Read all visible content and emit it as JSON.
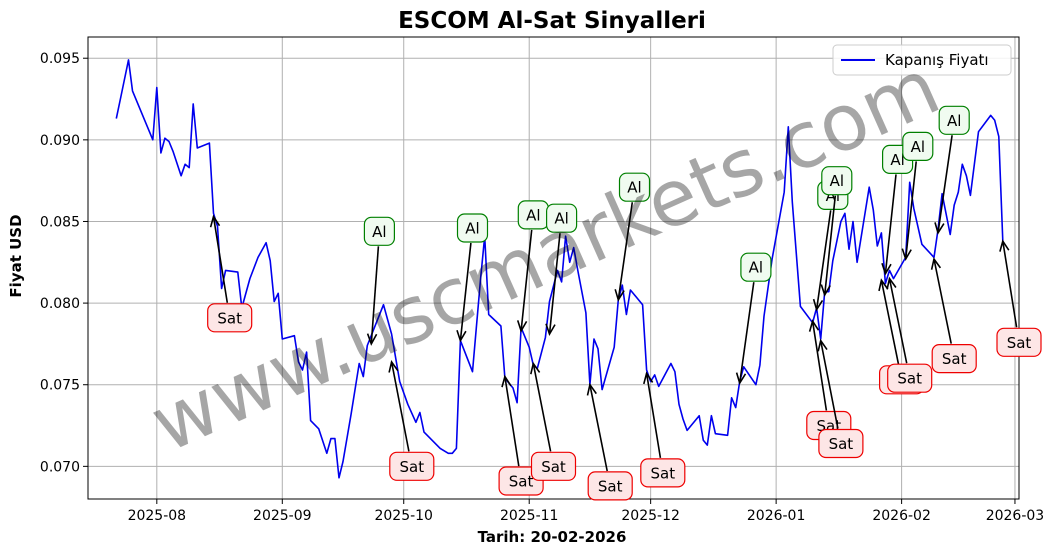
{
  "chart_data": {
    "type": "line",
    "title": "ESCOM Al-Sat Sinyalleri",
    "xlabel": "Tarih: 20-02-2026",
    "ylabel": "Fiyat USD",
    "watermark": "www.uscmarkets.com",
    "legend": {
      "position": "top-right",
      "entries": [
        "Kapanış Fiyatı"
      ]
    },
    "grid": true,
    "xlim": [
      "2025-07-15",
      "2026-03-02"
    ],
    "ylim": [
      0.068,
      0.0963
    ],
    "xticks": [
      {
        "date": "2025-08-01",
        "label": "2025-08"
      },
      {
        "date": "2025-09-01",
        "label": "2025-09"
      },
      {
        "date": "2025-10-01",
        "label": "2025-10"
      },
      {
        "date": "2025-11-01",
        "label": "2025-11"
      },
      {
        "date": "2025-12-01",
        "label": "2025-12"
      },
      {
        "date": "2026-01-01",
        "label": "2026-01"
      },
      {
        "date": "2026-02-01",
        "label": "2026-02"
      },
      {
        "date": "2026-03-01",
        "label": "2026-03"
      }
    ],
    "yticks": [
      0.07,
      0.075,
      0.08,
      0.085,
      0.09,
      0.095
    ],
    "ytick_labels": [
      "0.070",
      "0.075",
      "0.080",
      "0.085",
      "0.090",
      "0.095"
    ],
    "colors": {
      "line": "#0000ee",
      "buy_edge": "#008000",
      "buy_face": "#f0fbf0",
      "sell_edge": "#ee0000",
      "sell_face": "#fde6e6"
    },
    "series": [
      {
        "name": "Kapanış Fiyatı",
        "points": [
          [
            "2025-07-22",
            0.0913
          ],
          [
            "2025-07-23",
            0.0925
          ],
          [
            "2025-07-25",
            0.0949
          ],
          [
            "2025-07-26",
            0.093
          ],
          [
            "2025-07-29",
            0.0912
          ],
          [
            "2025-07-31",
            0.09
          ],
          [
            "2025-08-01",
            0.0932
          ],
          [
            "2025-08-02",
            0.0892
          ],
          [
            "2025-08-03",
            0.0901
          ],
          [
            "2025-08-04",
            0.0899
          ],
          [
            "2025-08-05",
            0.0893
          ],
          [
            "2025-08-07",
            0.0878
          ],
          [
            "2025-08-08",
            0.0885
          ],
          [
            "2025-08-09",
            0.0883
          ],
          [
            "2025-08-10",
            0.0922
          ],
          [
            "2025-08-11",
            0.0895
          ],
          [
            "2025-08-14",
            0.0898
          ],
          [
            "2025-08-15",
            0.0855
          ],
          [
            "2025-08-16",
            0.0847
          ],
          [
            "2025-08-17",
            0.0809
          ],
          [
            "2025-08-18",
            0.082
          ],
          [
            "2025-08-21",
            0.0819
          ],
          [
            "2025-08-22",
            0.0797
          ],
          [
            "2025-08-24",
            0.0815
          ],
          [
            "2025-08-26",
            0.0828
          ],
          [
            "2025-08-28",
            0.0837
          ],
          [
            "2025-08-29",
            0.0826
          ],
          [
            "2025-08-30",
            0.0801
          ],
          [
            "2025-08-31",
            0.0806
          ],
          [
            "2025-09-01",
            0.0778
          ],
          [
            "2025-09-04",
            0.078
          ],
          [
            "2025-09-05",
            0.0764
          ],
          [
            "2025-09-06",
            0.0759
          ],
          [
            "2025-09-07",
            0.077
          ],
          [
            "2025-09-08",
            0.0728
          ],
          [
            "2025-09-10",
            0.0723
          ],
          [
            "2025-09-12",
            0.0708
          ],
          [
            "2025-09-13",
            0.0717
          ],
          [
            "2025-09-14",
            0.0717
          ],
          [
            "2025-09-15",
            0.0693
          ],
          [
            "2025-09-16",
            0.0703
          ],
          [
            "2025-09-18",
            0.0732
          ],
          [
            "2025-09-20",
            0.0763
          ],
          [
            "2025-09-21",
            0.0755
          ],
          [
            "2025-09-22",
            0.0774
          ],
          [
            "2025-09-26",
            0.0799
          ],
          [
            "2025-09-28",
            0.0781
          ],
          [
            "2025-09-30",
            0.0752
          ],
          [
            "2025-10-02",
            0.0738
          ],
          [
            "2025-10-04",
            0.0727
          ],
          [
            "2025-10-05",
            0.0733
          ],
          [
            "2025-10-06",
            0.0721
          ],
          [
            "2025-10-10",
            0.0711
          ],
          [
            "2025-10-12",
            0.0708
          ],
          [
            "2025-10-13",
            0.0708
          ],
          [
            "2025-10-14",
            0.0711
          ],
          [
            "2025-10-15",
            0.0777
          ],
          [
            "2025-10-18",
            0.0758
          ],
          [
            "2025-10-20",
            0.0815
          ],
          [
            "2025-10-21",
            0.0841
          ],
          [
            "2025-10-22",
            0.0793
          ],
          [
            "2025-10-25",
            0.0786
          ],
          [
            "2025-10-26",
            0.0754
          ],
          [
            "2025-10-28",
            0.0748
          ],
          [
            "2025-10-29",
            0.0739
          ],
          [
            "2025-10-30",
            0.0785
          ],
          [
            "2025-11-01",
            0.0773
          ],
          [
            "2025-11-02",
            0.0762
          ],
          [
            "2025-11-03",
            0.076
          ],
          [
            "2025-11-05",
            0.0779
          ],
          [
            "2025-11-06",
            0.0801
          ],
          [
            "2025-11-08",
            0.082
          ],
          [
            "2025-11-09",
            0.0813
          ],
          [
            "2025-11-10",
            0.0841
          ],
          [
            "2025-11-11",
            0.0825
          ],
          [
            "2025-11-12",
            0.0834
          ],
          [
            "2025-11-13",
            0.082
          ],
          [
            "2025-11-15",
            0.0794
          ],
          [
            "2025-11-16",
            0.075
          ],
          [
            "2025-11-17",
            0.0778
          ],
          [
            "2025-11-18",
            0.0772
          ],
          [
            "2025-11-19",
            0.0747
          ],
          [
            "2025-11-22",
            0.0773
          ],
          [
            "2025-11-23",
            0.0802
          ],
          [
            "2025-11-24",
            0.0811
          ],
          [
            "2025-11-25",
            0.0793
          ],
          [
            "2025-11-26",
            0.0808
          ],
          [
            "2025-11-29",
            0.0799
          ],
          [
            "2025-11-30",
            0.0759
          ],
          [
            "2025-12-01",
            0.0752
          ],
          [
            "2025-12-02",
            0.0756
          ],
          [
            "2025-12-03",
            0.0749
          ],
          [
            "2025-12-06",
            0.0763
          ],
          [
            "2025-12-07",
            0.0758
          ],
          [
            "2025-12-08",
            0.0738
          ],
          [
            "2025-12-09",
            0.0729
          ],
          [
            "2025-12-10",
            0.0722
          ],
          [
            "2025-12-13",
            0.0731
          ],
          [
            "2025-12-14",
            0.0716
          ],
          [
            "2025-12-15",
            0.0713
          ],
          [
            "2025-12-16",
            0.0731
          ],
          [
            "2025-12-17",
            0.072
          ],
          [
            "2025-12-20",
            0.0719
          ],
          [
            "2025-12-21",
            0.0742
          ],
          [
            "2025-12-22",
            0.0736
          ],
          [
            "2025-12-23",
            0.0752
          ],
          [
            "2025-12-24",
            0.0761
          ],
          [
            "2025-12-27",
            0.075
          ],
          [
            "2025-12-28",
            0.0762
          ],
          [
            "2025-12-29",
            0.0792
          ],
          [
            "2025-12-31",
            0.0827
          ],
          [
            "2026-01-03",
            0.0868
          ],
          [
            "2026-01-04",
            0.0908
          ],
          [
            "2026-01-05",
            0.0862
          ],
          [
            "2026-01-07",
            0.0798
          ],
          [
            "2026-01-10",
            0.0788
          ],
          [
            "2026-01-11",
            0.0797
          ],
          [
            "2026-01-12",
            0.0778
          ],
          [
            "2026-01-13",
            0.0807
          ],
          [
            "2026-01-14",
            0.0807
          ],
          [
            "2026-01-15",
            0.0826
          ],
          [
            "2026-01-17",
            0.085
          ],
          [
            "2026-01-18",
            0.0855
          ],
          [
            "2026-01-19",
            0.0833
          ],
          [
            "2026-01-20",
            0.085
          ],
          [
            "2026-01-21",
            0.0825
          ],
          [
            "2026-01-24",
            0.0871
          ],
          [
            "2026-01-25",
            0.0857
          ],
          [
            "2026-01-26",
            0.0835
          ],
          [
            "2026-01-27",
            0.0843
          ],
          [
            "2026-01-28",
            0.0812
          ],
          [
            "2026-01-29",
            0.082
          ],
          [
            "2026-01-30",
            0.0815
          ],
          [
            "2026-02-02",
            0.0828
          ],
          [
            "2026-02-03",
            0.0874
          ],
          [
            "2026-02-04",
            0.0858
          ],
          [
            "2026-02-06",
            0.0836
          ],
          [
            "2026-02-09",
            0.0828
          ],
          [
            "2026-02-10",
            0.0845
          ],
          [
            "2026-02-11",
            0.0867
          ],
          [
            "2026-02-13",
            0.0842
          ],
          [
            "2026-02-14",
            0.086
          ],
          [
            "2026-02-15",
            0.0868
          ],
          [
            "2026-02-16",
            0.0885
          ],
          [
            "2026-02-17",
            0.0878
          ],
          [
            "2026-02-18",
            0.0866
          ],
          [
            "2026-02-20",
            0.0905
          ],
          [
            "2026-02-23",
            0.0915
          ],
          [
            "2026-02-24",
            0.0912
          ],
          [
            "2026-02-25",
            0.0902
          ],
          [
            "2026-02-26",
            0.0838
          ]
        ]
      }
    ],
    "signals": [
      {
        "label": "Sat",
        "kind": "sell",
        "date": "2025-08-15",
        "price": 0.0853,
        "text_date": "2025-08-19",
        "text_price": 0.0791
      },
      {
        "label": "Al",
        "kind": "buy",
        "date": "2025-09-23",
        "price": 0.0775,
        "text_date": "2025-09-25",
        "text_price": 0.0844
      },
      {
        "label": "Sat",
        "kind": "sell",
        "date": "2025-09-28",
        "price": 0.0764,
        "text_date": "2025-10-03",
        "text_price": 0.07
      },
      {
        "label": "Al",
        "kind": "buy",
        "date": "2025-10-15",
        "price": 0.0777,
        "text_date": "2025-10-18",
        "text_price": 0.0846
      },
      {
        "label": "Sat",
        "kind": "sell",
        "date": "2025-10-26",
        "price": 0.0755,
        "text_date": "2025-10-30",
        "text_price": 0.0691
      },
      {
        "label": "Al",
        "kind": "buy",
        "date": "2025-10-30",
        "price": 0.0783,
        "text_date": "2025-11-02",
        "text_price": 0.0854
      },
      {
        "label": "Sat",
        "kind": "sell",
        "date": "2025-11-02",
        "price": 0.0763,
        "text_date": "2025-11-07",
        "text_price": 0.07
      },
      {
        "label": "Al",
        "kind": "buy",
        "date": "2025-11-06",
        "price": 0.0781,
        "text_date": "2025-11-09",
        "text_price": 0.0852
      },
      {
        "label": "Sat",
        "kind": "sell",
        "date": "2025-11-16",
        "price": 0.075,
        "text_date": "2025-11-21",
        "text_price": 0.0688
      },
      {
        "label": "Al",
        "kind": "buy",
        "date": "2025-11-23",
        "price": 0.0802,
        "text_date": "2025-11-27",
        "text_price": 0.0871
      },
      {
        "label": "Sat",
        "kind": "sell",
        "date": "2025-11-30",
        "price": 0.0757,
        "text_date": "2025-12-04",
        "text_price": 0.0696
      },
      {
        "label": "Al",
        "kind": "buy",
        "date": "2025-12-23",
        "price": 0.0751,
        "text_date": "2025-12-27",
        "text_price": 0.0822
      },
      {
        "label": "Sat",
        "kind": "sell",
        "date": "2026-01-10",
        "price": 0.0789,
        "text_date": "2026-01-14",
        "text_price": 0.0725
      },
      {
        "label": "Al",
        "kind": "buy",
        "date": "2026-01-11",
        "price": 0.0796,
        "text_date": "2026-01-15",
        "text_price": 0.0866
      },
      {
        "label": "Sat",
        "kind": "sell",
        "date": "2026-01-12",
        "price": 0.0777,
        "text_date": "2026-01-17",
        "text_price": 0.0714
      },
      {
        "label": "Al",
        "kind": "buy",
        "date": "2026-01-13",
        "price": 0.0805,
        "text_date": "2026-01-16",
        "text_price": 0.0875
      },
      {
        "label": "Sat",
        "kind": "sell",
        "date": "2026-01-27",
        "price": 0.0814,
        "text_date": "2026-02-01",
        "text_price": 0.0753
      },
      {
        "label": "Al",
        "kind": "buy",
        "date": "2026-01-28",
        "price": 0.0818,
        "text_date": "2026-01-31",
        "text_price": 0.0888
      },
      {
        "label": "Sat",
        "kind": "sell",
        "date": "2026-01-29",
        "price": 0.0815,
        "text_date": "2026-02-03",
        "text_price": 0.0754
      },
      {
        "label": "Al",
        "kind": "buy",
        "date": "2026-02-02",
        "price": 0.0827,
        "text_date": "2026-02-05",
        "text_price": 0.0896
      },
      {
        "label": "Sat",
        "kind": "sell",
        "date": "2026-02-09",
        "price": 0.0827,
        "text_date": "2026-02-14",
        "text_price": 0.0766
      },
      {
        "label": "Al",
        "kind": "buy",
        "date": "2026-02-10",
        "price": 0.0843,
        "text_date": "2026-02-14",
        "text_price": 0.0912
      },
      {
        "label": "Sat",
        "kind": "sell",
        "date": "2026-02-26",
        "price": 0.0838,
        "text_date": "2026-03-02",
        "text_price": 0.0776
      }
    ]
  }
}
